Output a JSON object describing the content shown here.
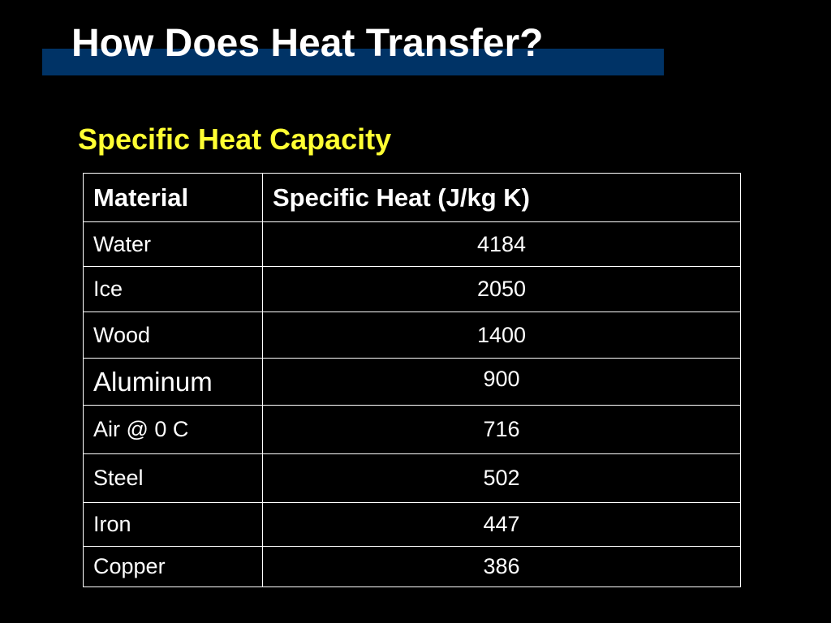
{
  "header": {
    "title": "How Does Heat Transfer?",
    "subtitle": "Specific Heat Capacity"
  },
  "table": {
    "columns": [
      "Material",
      "Specific Heat (J/kg K)"
    ],
    "rows": [
      [
        "Water",
        4184
      ],
      [
        "Ice",
        2050
      ],
      [
        "Wood",
        1400
      ],
      [
        "Aluminum",
        900
      ],
      [
        "Air @ 0 C",
        716
      ],
      [
        "Steel",
        502
      ],
      [
        "Iron",
        447
      ],
      [
        "Copper",
        386
      ]
    ]
  }
}
